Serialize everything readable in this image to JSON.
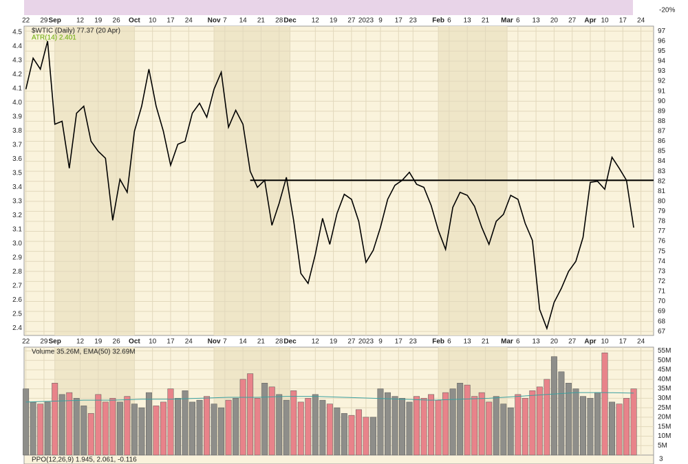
{
  "chart_data": {
    "type": "stock",
    "title": "$WTIC (Daily) 77.37 (20 Apr)",
    "atr_label": "ATR(14) 2.401",
    "volume_label": "Volume 35.26M, EMA(50) 32.69M",
    "ppo_label": "PPO(12,26,9) 1.945, 2.061, -0.116",
    "top_panel_tick": "-20%",
    "ppo_tick": "3",
    "x": [
      0,
      2,
      4,
      6,
      8,
      10,
      12,
      14,
      16,
      18,
      20,
      22,
      24,
      26,
      28,
      30,
      32,
      34,
      36,
      38,
      40,
      42,
      44,
      46,
      48,
      50,
      52,
      54,
      56,
      58,
      60,
      62,
      64,
      66,
      68,
      70,
      72,
      74,
      76,
      78,
      80,
      82,
      84,
      86,
      88,
      90,
      92,
      94,
      96,
      98,
      100,
      102,
      104,
      106,
      108,
      110,
      112,
      114,
      116,
      118,
      120,
      122,
      124,
      126,
      128,
      130,
      132,
      134,
      136,
      138,
      140,
      142,
      144,
      146,
      148,
      150,
      152,
      154,
      156,
      158,
      160,
      162,
      164,
      166,
      168
    ],
    "xlim": [
      -0.5,
      173.5
    ],
    "xticks": [
      {
        "value": 0,
        "label": "22"
      },
      {
        "value": 5,
        "label": "29"
      },
      {
        "value": 8,
        "label": "Sep"
      },
      {
        "value": 15,
        "label": "12"
      },
      {
        "value": 20,
        "label": "19"
      },
      {
        "value": 25,
        "label": "26"
      },
      {
        "value": 30,
        "label": "Oct"
      },
      {
        "value": 35,
        "label": "10"
      },
      {
        "value": 40,
        "label": "17"
      },
      {
        "value": 45,
        "label": "24"
      },
      {
        "value": 52,
        "label": "Nov"
      },
      {
        "value": 55,
        "label": "7"
      },
      {
        "value": 60,
        "label": "14"
      },
      {
        "value": 65,
        "label": "21"
      },
      {
        "value": 70,
        "label": "28"
      },
      {
        "value": 73,
        "label": "Dec"
      },
      {
        "value": 80,
        "label": "12"
      },
      {
        "value": 85,
        "label": "19"
      },
      {
        "value": 90,
        "label": "27"
      },
      {
        "value": 94,
        "label": "2023"
      },
      {
        "value": 98,
        "label": "9"
      },
      {
        "value": 103,
        "label": "17"
      },
      {
        "value": 107,
        "label": "23"
      },
      {
        "value": 114,
        "label": "Feb"
      },
      {
        "value": 117,
        "label": "6"
      },
      {
        "value": 122,
        "label": "13"
      },
      {
        "value": 127,
        "label": "21"
      },
      {
        "value": 133,
        "label": "Mar"
      },
      {
        "value": 136,
        "label": "6"
      },
      {
        "value": 141,
        "label": "13"
      },
      {
        "value": 146,
        "label": "20"
      },
      {
        "value": 151,
        "label": "27"
      },
      {
        "value": 156,
        "label": "Apr"
      },
      {
        "value": 160,
        "label": "10"
      },
      {
        "value": 165,
        "label": "17"
      },
      {
        "value": 170,
        "label": "24"
      }
    ],
    "series": [
      {
        "name": "$WTIC",
        "color": "#000000",
        "values": [
          91.2,
          94.3,
          93.2,
          96,
          87.7,
          88,
          83.3,
          88.8,
          89.5,
          86,
          85,
          84.3,
          78.1,
          82.2,
          80.9,
          87,
          89.5,
          93.2,
          89.5,
          87,
          83.6,
          85.7,
          86,
          88.8,
          89.8,
          88.4,
          91.2,
          92.9,
          87.4,
          89.1,
          87.7,
          83,
          81.4,
          82.1,
          77.6,
          79.8,
          82.4,
          78.1,
          72.8,
          71.8,
          74.7,
          78.3,
          75.7,
          78.8,
          80.7,
          80.2,
          78,
          73.9,
          75.1,
          77.4,
          80.2,
          81.6,
          82.1,
          82.9,
          81.7,
          81.4,
          79.6,
          77.1,
          75.2,
          79.4,
          80.9,
          80.6,
          79.5,
          77.4,
          75.7,
          78,
          78.7,
          80.6,
          80.2,
          77.8,
          76.1,
          69.2,
          67.3,
          69.9,
          71.3,
          73,
          74,
          76.4,
          81.9,
          82,
          81.2,
          84.4,
          83.3,
          82.1,
          77.37
        ]
      }
    ],
    "ylim": [
      66.6,
      97.5
    ],
    "yticks": [
      67,
      68,
      69,
      70,
      71,
      72,
      73,
      74,
      75,
      76,
      77,
      78,
      79,
      80,
      81,
      82,
      83,
      84,
      85,
      86,
      87,
      88,
      89,
      90,
      91,
      92,
      93,
      94,
      95,
      96,
      97
    ],
    "atr_lim": [
      2.349,
      4.544
    ],
    "atr_ticks": [
      {
        "value": 2.4,
        "label": "2.4"
      },
      {
        "value": 2.5,
        "label": "2.5"
      },
      {
        "value": 2.6,
        "label": "2.6"
      },
      {
        "value": 2.7,
        "label": "2.7"
      },
      {
        "value": 2.8,
        "label": "2.8"
      },
      {
        "value": 2.9,
        "label": "2.9"
      },
      {
        "value": 3,
        "label": "3.0"
      },
      {
        "value": 3.1,
        "label": "3.1"
      },
      {
        "value": 3.2,
        "label": "3.2"
      },
      {
        "value": 3.3,
        "label": "3.3"
      },
      {
        "value": 3.4,
        "label": "3.4"
      },
      {
        "value": 3.5,
        "label": "3.5"
      },
      {
        "value": 3.6,
        "label": "3.6"
      },
      {
        "value": 3.7,
        "label": "3.7"
      },
      {
        "value": 3.8,
        "label": "3.8"
      },
      {
        "value": 3.9,
        "label": "3.9"
      },
      {
        "value": 4,
        "label": "4.0"
      },
      {
        "value": 4.1,
        "label": "4.1"
      },
      {
        "value": 4.2,
        "label": "4.2"
      },
      {
        "value": 4.3,
        "label": "4.3"
      },
      {
        "value": 4.4,
        "label": "4.4"
      },
      {
        "value": 4.5,
        "label": "4.5"
      }
    ],
    "hline": {
      "value": 82.1,
      "x_start": 62,
      "color": "#000000"
    },
    "volume": {
      "values": [
        35,
        28,
        27,
        28,
        38,
        32,
        33,
        30,
        26,
        22,
        32,
        28,
        30,
        28,
        31,
        27,
        25,
        33,
        26,
        28,
        35,
        30,
        34,
        28,
        29,
        31,
        27,
        25,
        29,
        30,
        40,
        43,
        30,
        38,
        36,
        32,
        29,
        34,
        28,
        30,
        32,
        29,
        27,
        25,
        22,
        21,
        24,
        20,
        20,
        35,
        33,
        31,
        30,
        28,
        31,
        30,
        32,
        29,
        33,
        35,
        38,
        37,
        31,
        33,
        28,
        31,
        27,
        25,
        32,
        30,
        34,
        36,
        40,
        52,
        44,
        38,
        35,
        31,
        30,
        33,
        54,
        28,
        27,
        30,
        35
      ],
      "up_color": "#8e8e8a",
      "down_color": "#e8838a",
      "ema_x": [
        0,
        8,
        16,
        24,
        32,
        40,
        48,
        56,
        64,
        72,
        80,
        88,
        96,
        104,
        112,
        120,
        128,
        136,
        144,
        152,
        160,
        168
      ],
      "ema": [
        28,
        28.5,
        29,
        29,
        29.5,
        29.5,
        30,
        30.5,
        30.5,
        31,
        31,
        30.5,
        30,
        29.5,
        29,
        29.5,
        30,
        31,
        32,
        33,
        33,
        32.7
      ],
      "ema_color": "#3aa0a0",
      "ylim": [
        0,
        57
      ],
      "yticks": [
        {
          "value": 5,
          "label": "5M"
        },
        {
          "value": 10,
          "label": "10M"
        },
        {
          "value": 15,
          "label": "15M"
        },
        {
          "value": 20,
          "label": "20M"
        },
        {
          "value": 25,
          "label": "25M"
        },
        {
          "value": 30,
          "label": "30M"
        },
        {
          "value": 35,
          "label": "35M"
        },
        {
          "value": 40,
          "label": "40M"
        },
        {
          "value": 45,
          "label": "45M"
        },
        {
          "value": 50,
          "label": "50M"
        },
        {
          "value": 55,
          "label": "55M"
        }
      ]
    },
    "grid": true
  }
}
